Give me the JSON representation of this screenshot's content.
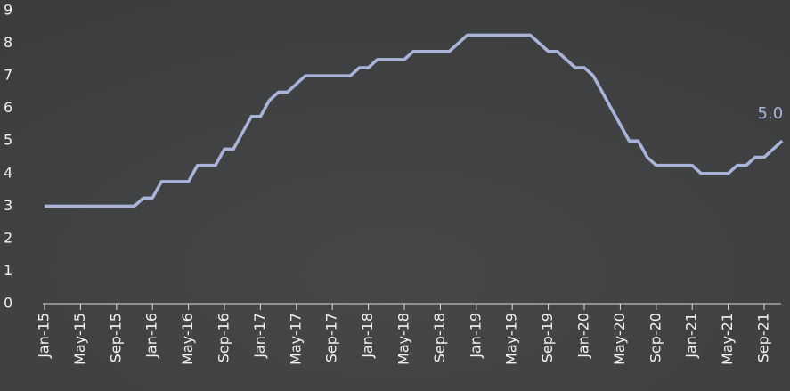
{
  "chart_data": {
    "type": "line",
    "categories": [
      "Jan-15",
      null,
      null,
      null,
      "May-15",
      null,
      null,
      null,
      "Sep-15",
      null,
      null,
      null,
      "Jan-16",
      null,
      null,
      null,
      "May-16",
      null,
      null,
      null,
      "Sep-16",
      null,
      null,
      null,
      "Jan-17",
      null,
      null,
      null,
      "May-17",
      null,
      null,
      null,
      "Sep-17",
      null,
      null,
      null,
      "Jan-18",
      null,
      null,
      null,
      "May-18",
      null,
      null,
      null,
      "Sep-18",
      null,
      null,
      null,
      "Jan-19",
      null,
      null,
      null,
      "May-19",
      null,
      null,
      null,
      "Sep-19",
      null,
      null,
      null,
      "Jan-20",
      null,
      null,
      null,
      "May-20",
      null,
      null,
      null,
      "Sep-20",
      null,
      null,
      null,
      "Jan-21",
      null,
      null,
      null,
      "May-21",
      null,
      null,
      null,
      "Sep-21",
      null,
      null
    ],
    "values": [
      3.0,
      3.0,
      3.0,
      3.0,
      3.0,
      3.0,
      3.0,
      3.0,
      3.0,
      3.0,
      3.0,
      3.25,
      3.25,
      3.75,
      3.75,
      3.75,
      3.75,
      4.25,
      4.25,
      4.25,
      4.75,
      4.75,
      5.25,
      5.75,
      5.75,
      6.25,
      6.5,
      6.5,
      6.75,
      7.0,
      7.0,
      7.0,
      7.0,
      7.0,
      7.0,
      7.25,
      7.25,
      7.5,
      7.5,
      7.5,
      7.5,
      7.75,
      7.75,
      7.75,
      7.75,
      7.75,
      8.0,
      8.25,
      8.25,
      8.25,
      8.25,
      8.25,
      8.25,
      8.25,
      8.25,
      8.0,
      7.75,
      7.75,
      7.5,
      7.25,
      7.25,
      7.0,
      6.5,
      6.0,
      5.5,
      5.0,
      5.0,
      4.5,
      4.25,
      4.25,
      4.25,
      4.25,
      4.25,
      4.0,
      4.0,
      4.0,
      4.0,
      4.25,
      4.25,
      4.5,
      4.5,
      4.75,
      5.0
    ],
    "value_labels": [
      null,
      null,
      null,
      null,
      null,
      null,
      null,
      null,
      null,
      null,
      null,
      null,
      null,
      null,
      null,
      null,
      null,
      null,
      null,
      null,
      null,
      null,
      null,
      null,
      null,
      null,
      null,
      null,
      null,
      null,
      null,
      null,
      null,
      null,
      null,
      null,
      null,
      null,
      null,
      null,
      null,
      null,
      null,
      null,
      null,
      null,
      null,
      null,
      null,
      null,
      null,
      null,
      null,
      null,
      null,
      null,
      null,
      null,
      null,
      null,
      null,
      null,
      null,
      null,
      null,
      null,
      null,
      null,
      null,
      null,
      null,
      null,
      null,
      null,
      null,
      null,
      null,
      null,
      null,
      null,
      null,
      null,
      "5.0"
    ],
    "color": "#aab4d9",
    "ylim": [
      0,
      9
    ],
    "yticks": [
      0,
      1,
      2,
      3,
      4,
      5,
      6,
      7,
      8,
      9
    ],
    "grid": false
  }
}
